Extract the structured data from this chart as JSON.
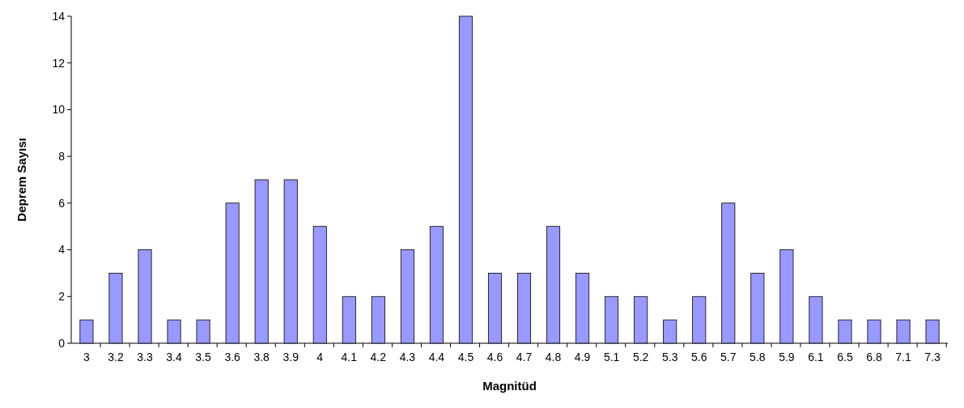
{
  "chart_data": {
    "type": "bar",
    "xlabel": "Magnitüd",
    "ylabel": "Deprem Sayısı",
    "categories": [
      "3",
      "3.2",
      "3.3",
      "3.4",
      "3.5",
      "3.6",
      "3.8",
      "3.9",
      "4",
      "4.1",
      "4.2",
      "4.3",
      "4.4",
      "4.5",
      "4.6",
      "4.7",
      "4.8",
      "4.9",
      "5.1",
      "5.2",
      "5.3",
      "5.6",
      "5.7",
      "5.8",
      "5.9",
      "6.1",
      "6.5",
      "6.8",
      "7.1",
      "7.3"
    ],
    "values": [
      1,
      3,
      4,
      1,
      1,
      6,
      7,
      7,
      5,
      2,
      2,
      4,
      5,
      14,
      3,
      3,
      5,
      3,
      2,
      2,
      1,
      2,
      6,
      3,
      4,
      2,
      1,
      1,
      1,
      1
    ],
    "color": "#9999ff",
    "ylim": [
      0,
      14
    ],
    "yticks": [
      0,
      2,
      4,
      6,
      8,
      10,
      12,
      14
    ],
    "grid": false
  }
}
